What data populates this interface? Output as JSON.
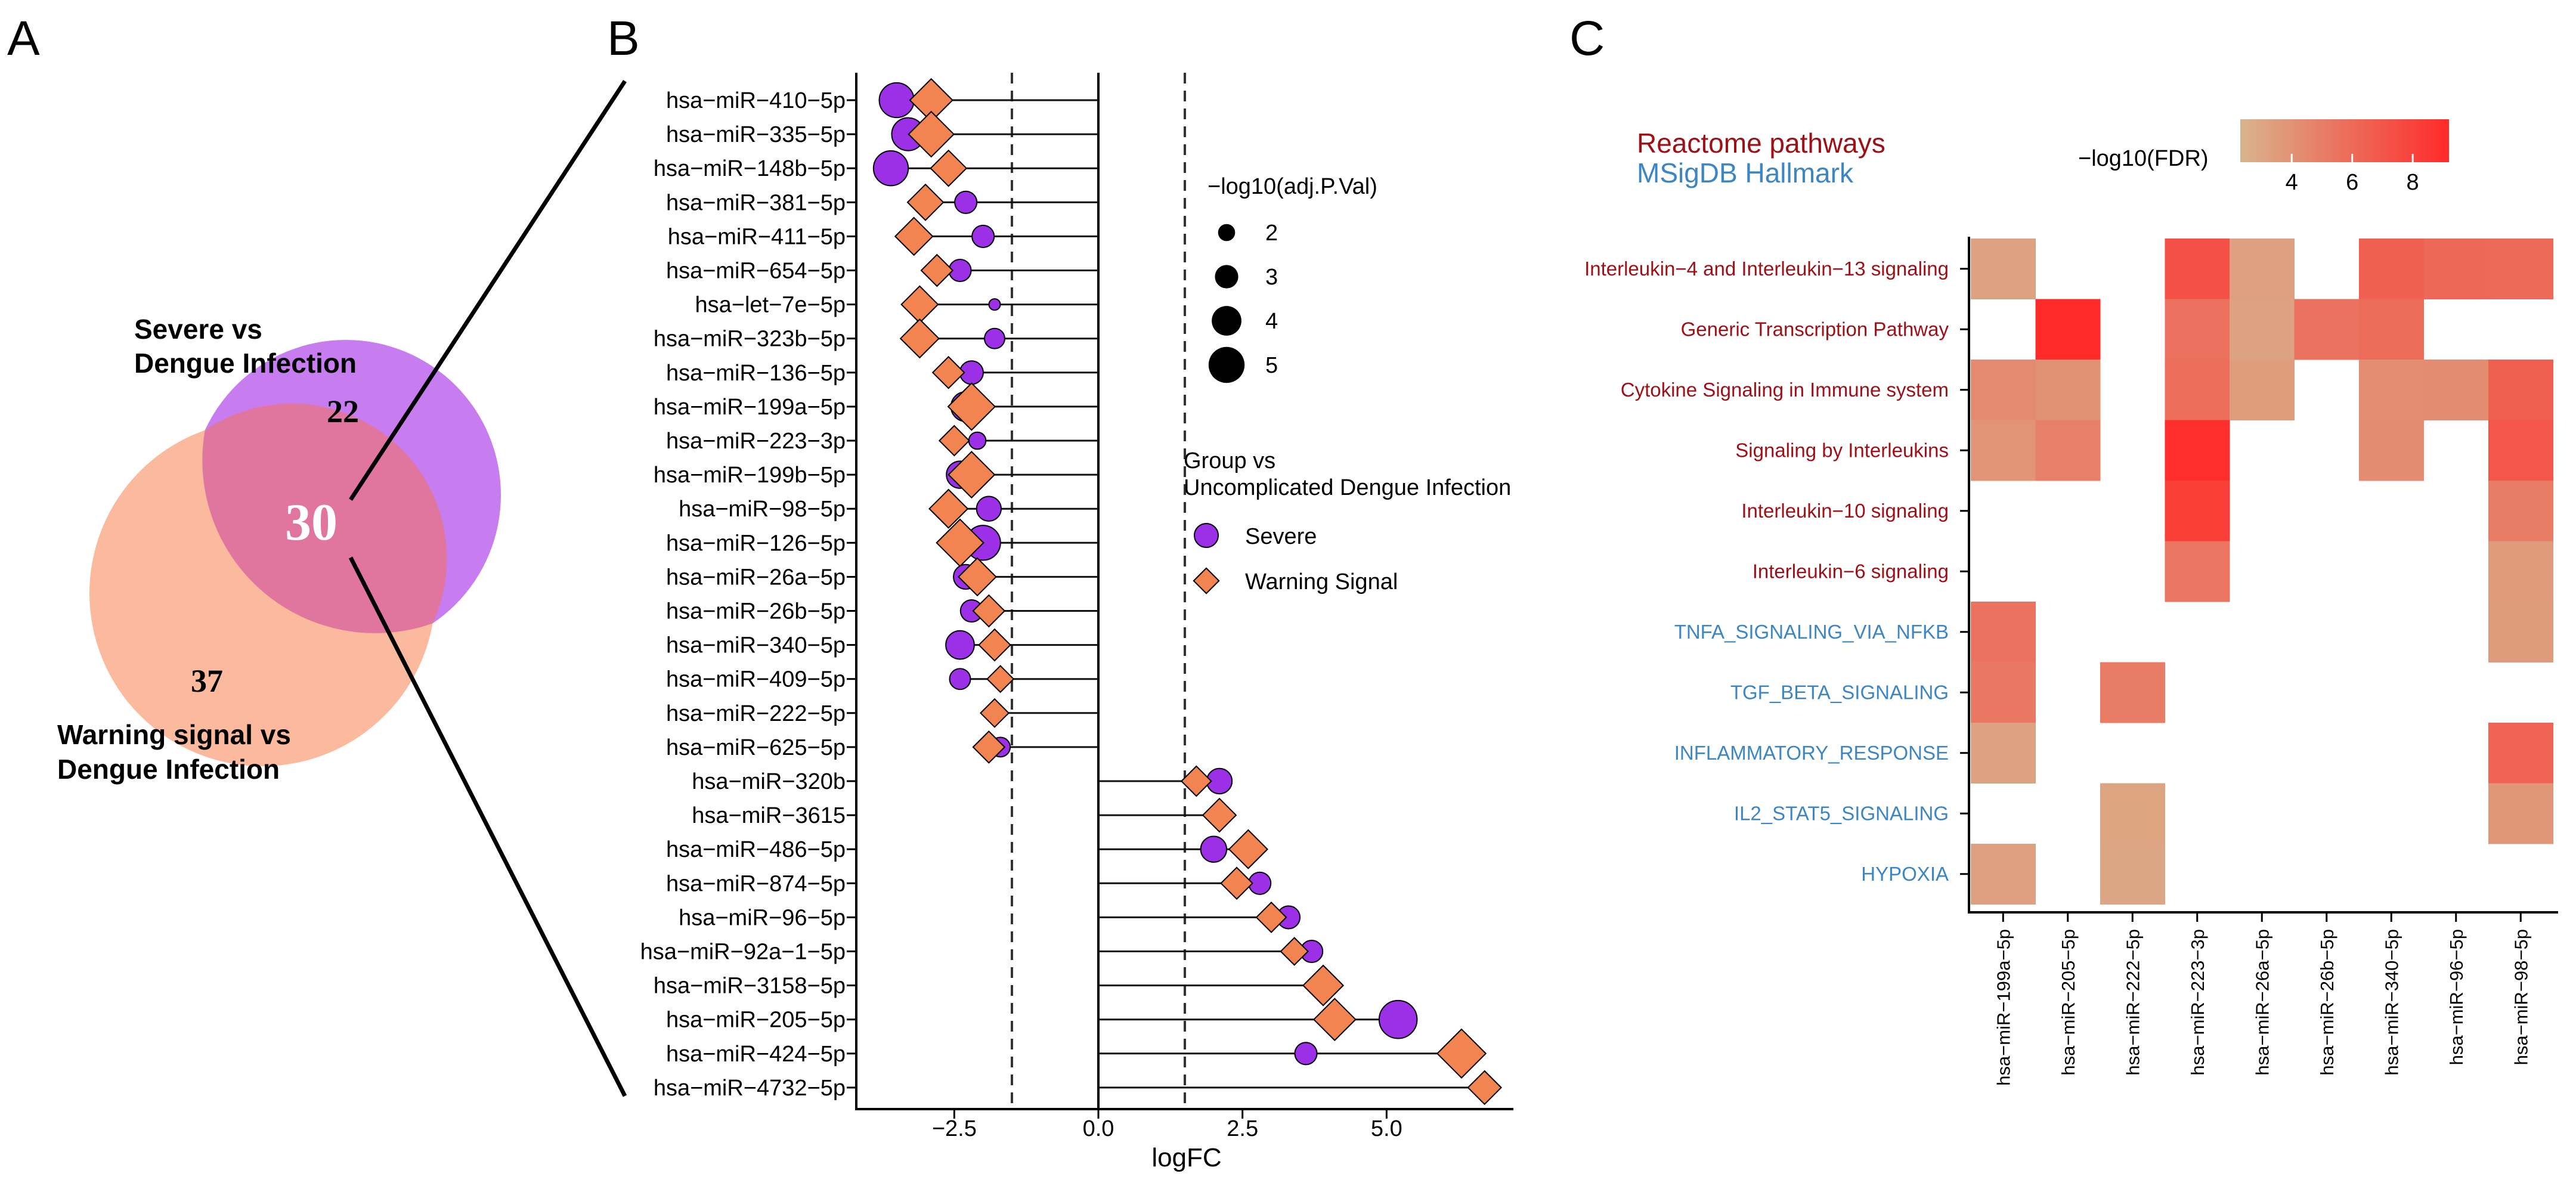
{
  "panels": {
    "a": "A",
    "b": "B",
    "c": "C"
  },
  "colors": {
    "severe": "#9b30e6",
    "warning": "#f28452",
    "venn_severe": "#c77df0",
    "venn_warning": "#fbb99d",
    "venn_overlap": "#e0769d",
    "reactome": "#9e0f16",
    "hallmark": "#3d86c6",
    "heat_low": "#d8b48e",
    "heat_high": "#ff2a2a"
  },
  "venn": {
    "set1_label_line1": "Severe vs",
    "set1_label_line2": "Dengue Infection",
    "set2_label_line1": "Warning signal vs",
    "set2_label_line2": "Dengue Infection",
    "set1_only": "22",
    "overlap": "30",
    "set2_only": "37"
  },
  "chart_data": [
    {
      "type": "scatter",
      "subtype": "lollipop",
      "xlabel": "logFC",
      "xlim": [
        -4.2,
        7.2
      ],
      "xticks": [
        -2.5,
        0.0,
        2.5,
        5.0
      ],
      "xtick_labels": [
        "−2.5",
        "0.0",
        "2.5",
        "5.0"
      ],
      "threshold_lines": [
        -1.5,
        1.5
      ],
      "size_legend_title": "−log10(adj.P.Val)",
      "size_legend_values": [
        "2",
        "3",
        "4",
        "5"
      ],
      "group_legend_title_line1": "Group vs",
      "group_legend_title_line2": "Uncomplicated Dengue Infection",
      "series_names": [
        "Severe",
        "Warning Signal"
      ],
      "categories": [
        "hsa−miR−410−5p",
        "hsa−miR−335−5p",
        "hsa−miR−148b−5p",
        "hsa−miR−381−5p",
        "hsa−miR−411−5p",
        "hsa−miR−654−5p",
        "hsa−let−7e−5p",
        "hsa−miR−323b−5p",
        "hsa−miR−136−5p",
        "hsa−miR−199a−5p",
        "hsa−miR−223−3p",
        "hsa−miR−199b−5p",
        "hsa−miR−98−5p",
        "hsa−miR−126−5p",
        "hsa−miR−26a−5p",
        "hsa−miR−26b−5p",
        "hsa−miR−340−5p",
        "hsa−miR−409−5p",
        "hsa−miR−222−5p",
        "hsa−miR−625−5p",
        "hsa−miR−320b",
        "hsa−miR−3615",
        "hsa−miR−486−5p",
        "hsa−miR−874−5p",
        "hsa−miR−96−5p",
        "hsa−miR−92a−1−5p",
        "hsa−miR−3158−5p",
        "hsa−miR−205−5p",
        "hsa−miR−424−5p",
        "hsa−miR−4732−5p"
      ],
      "severe_logfc": [
        -3.5,
        -3.3,
        -3.6,
        -2.3,
        -2.0,
        -2.4,
        -1.8,
        -1.8,
        -2.2,
        -2.3,
        -2.1,
        -2.4,
        -1.9,
        -2.0,
        -2.3,
        -2.2,
        -2.4,
        -2.4,
        null,
        -1.7,
        2.1,
        2.1,
        2.0,
        2.8,
        3.3,
        3.7,
        3.9,
        5.2,
        3.6,
        null
      ],
      "severe_neglog10p": [
        4.8,
        4.5,
        4.8,
        2.8,
        2.8,
        2.8,
        1.1,
        2.5,
        3.0,
        4.0,
        2.0,
        3.6,
        3.2,
        4.8,
        3.2,
        2.8,
        3.8,
        2.6,
        null,
        2.4,
        3.3,
        3.0,
        3.4,
        2.8,
        2.9,
        2.8,
        3.4,
        5.3,
        2.8,
        null
      ],
      "warning_logfc": [
        -2.9,
        -2.9,
        -2.6,
        -3.0,
        -3.2,
        -2.8,
        -3.1,
        -3.1,
        -2.6,
        -2.2,
        -2.5,
        -2.2,
        -2.6,
        -2.4,
        -2.1,
        -1.9,
        -1.8,
        -1.7,
        -1.8,
        -1.9,
        1.7,
        2.1,
        2.6,
        2.4,
        3.0,
        3.4,
        3.9,
        4.1,
        6.3,
        6.7
      ],
      "warning_neglog10p": [
        4.3,
        4.6,
        3.5,
        3.5,
        3.7,
        3.0,
        3.6,
        3.8,
        3.0,
        4.8,
        2.8,
        4.7,
        3.8,
        4.8,
        3.7,
        3.0,
        3.0,
        2.4,
        2.6,
        3.0,
        2.8,
        3.2,
        3.8,
        3.0,
        2.8,
        2.5,
        4.0,
        4.2,
        5.0,
        3.2
      ]
    },
    {
      "type": "heatmap",
      "title_reactome": "Reactome pathways",
      "title_hallmark": "MSigDB Hallmark",
      "legend_title": "−log10(FDR)",
      "legend_ticks": [
        "4",
        "6",
        "8"
      ],
      "legend_range": [
        2.3,
        9.2
      ],
      "rows": [
        {
          "label": "Interleukin−4 and Interleukin−13 signaling",
          "source": "reactome"
        },
        {
          "label": "Generic Transcription Pathway",
          "source": "reactome"
        },
        {
          "label": "Cytokine Signaling in Immune system",
          "source": "reactome"
        },
        {
          "label": "Signaling by Interleukins",
          "source": "reactome"
        },
        {
          "label": "Interleukin−10 signaling",
          "source": "reactome"
        },
        {
          "label": "Interleukin−6 signaling",
          "source": "reactome"
        },
        {
          "label": "TNFA_SIGNALING_VIA_NFKB",
          "source": "hallmark"
        },
        {
          "label": "TGF_BETA_SIGNALING",
          "source": "hallmark"
        },
        {
          "label": "INFLAMMATORY_RESPONSE",
          "source": "hallmark"
        },
        {
          "label": "IL2_STAT5_SIGNALING",
          "source": "hallmark"
        },
        {
          "label": "HYPOXIA",
          "source": "hallmark"
        }
      ],
      "columns": [
        "hsa−miR−199a−5p",
        "hsa−miR−205−5p",
        "hsa−miR−222−5p",
        "hsa−miR−223−3p",
        "hsa−miR−26a−5p",
        "hsa−miR−26b−5p",
        "hsa−miR−340−5p",
        "hsa−miR−96−5p",
        "hsa−miR−98−5p"
      ],
      "values": [
        [
          3.2,
          null,
          null,
          7.3,
          3.3,
          null,
          6.5,
          6.1,
          6.0
        ],
        [
          null,
          9.2,
          null,
          5.7,
          3.2,
          5.6,
          5.9,
          null,
          null
        ],
        [
          4.4,
          4.1,
          null,
          5.8,
          3.4,
          null,
          4.2,
          4.3,
          6.5
        ],
        [
          3.9,
          4.9,
          null,
          9.0,
          null,
          null,
          4.3,
          null,
          7.0
        ],
        [
          null,
          null,
          null,
          8.2,
          null,
          null,
          null,
          null,
          5.1
        ],
        [
          null,
          null,
          null,
          5.4,
          null,
          null,
          null,
          null,
          3.6
        ],
        [
          5.6,
          null,
          null,
          null,
          null,
          null,
          null,
          null,
          3.5
        ],
        [
          5.3,
          null,
          5.1,
          null,
          null,
          null,
          null,
          null,
          null
        ],
        [
          3.2,
          null,
          null,
          null,
          null,
          null,
          null,
          null,
          6.3
        ],
        [
          null,
          null,
          3.1,
          null,
          null,
          null,
          null,
          null,
          3.8
        ],
        [
          3.3,
          null,
          3.0,
          null,
          null,
          null,
          null,
          null,
          null
        ]
      ]
    }
  ]
}
